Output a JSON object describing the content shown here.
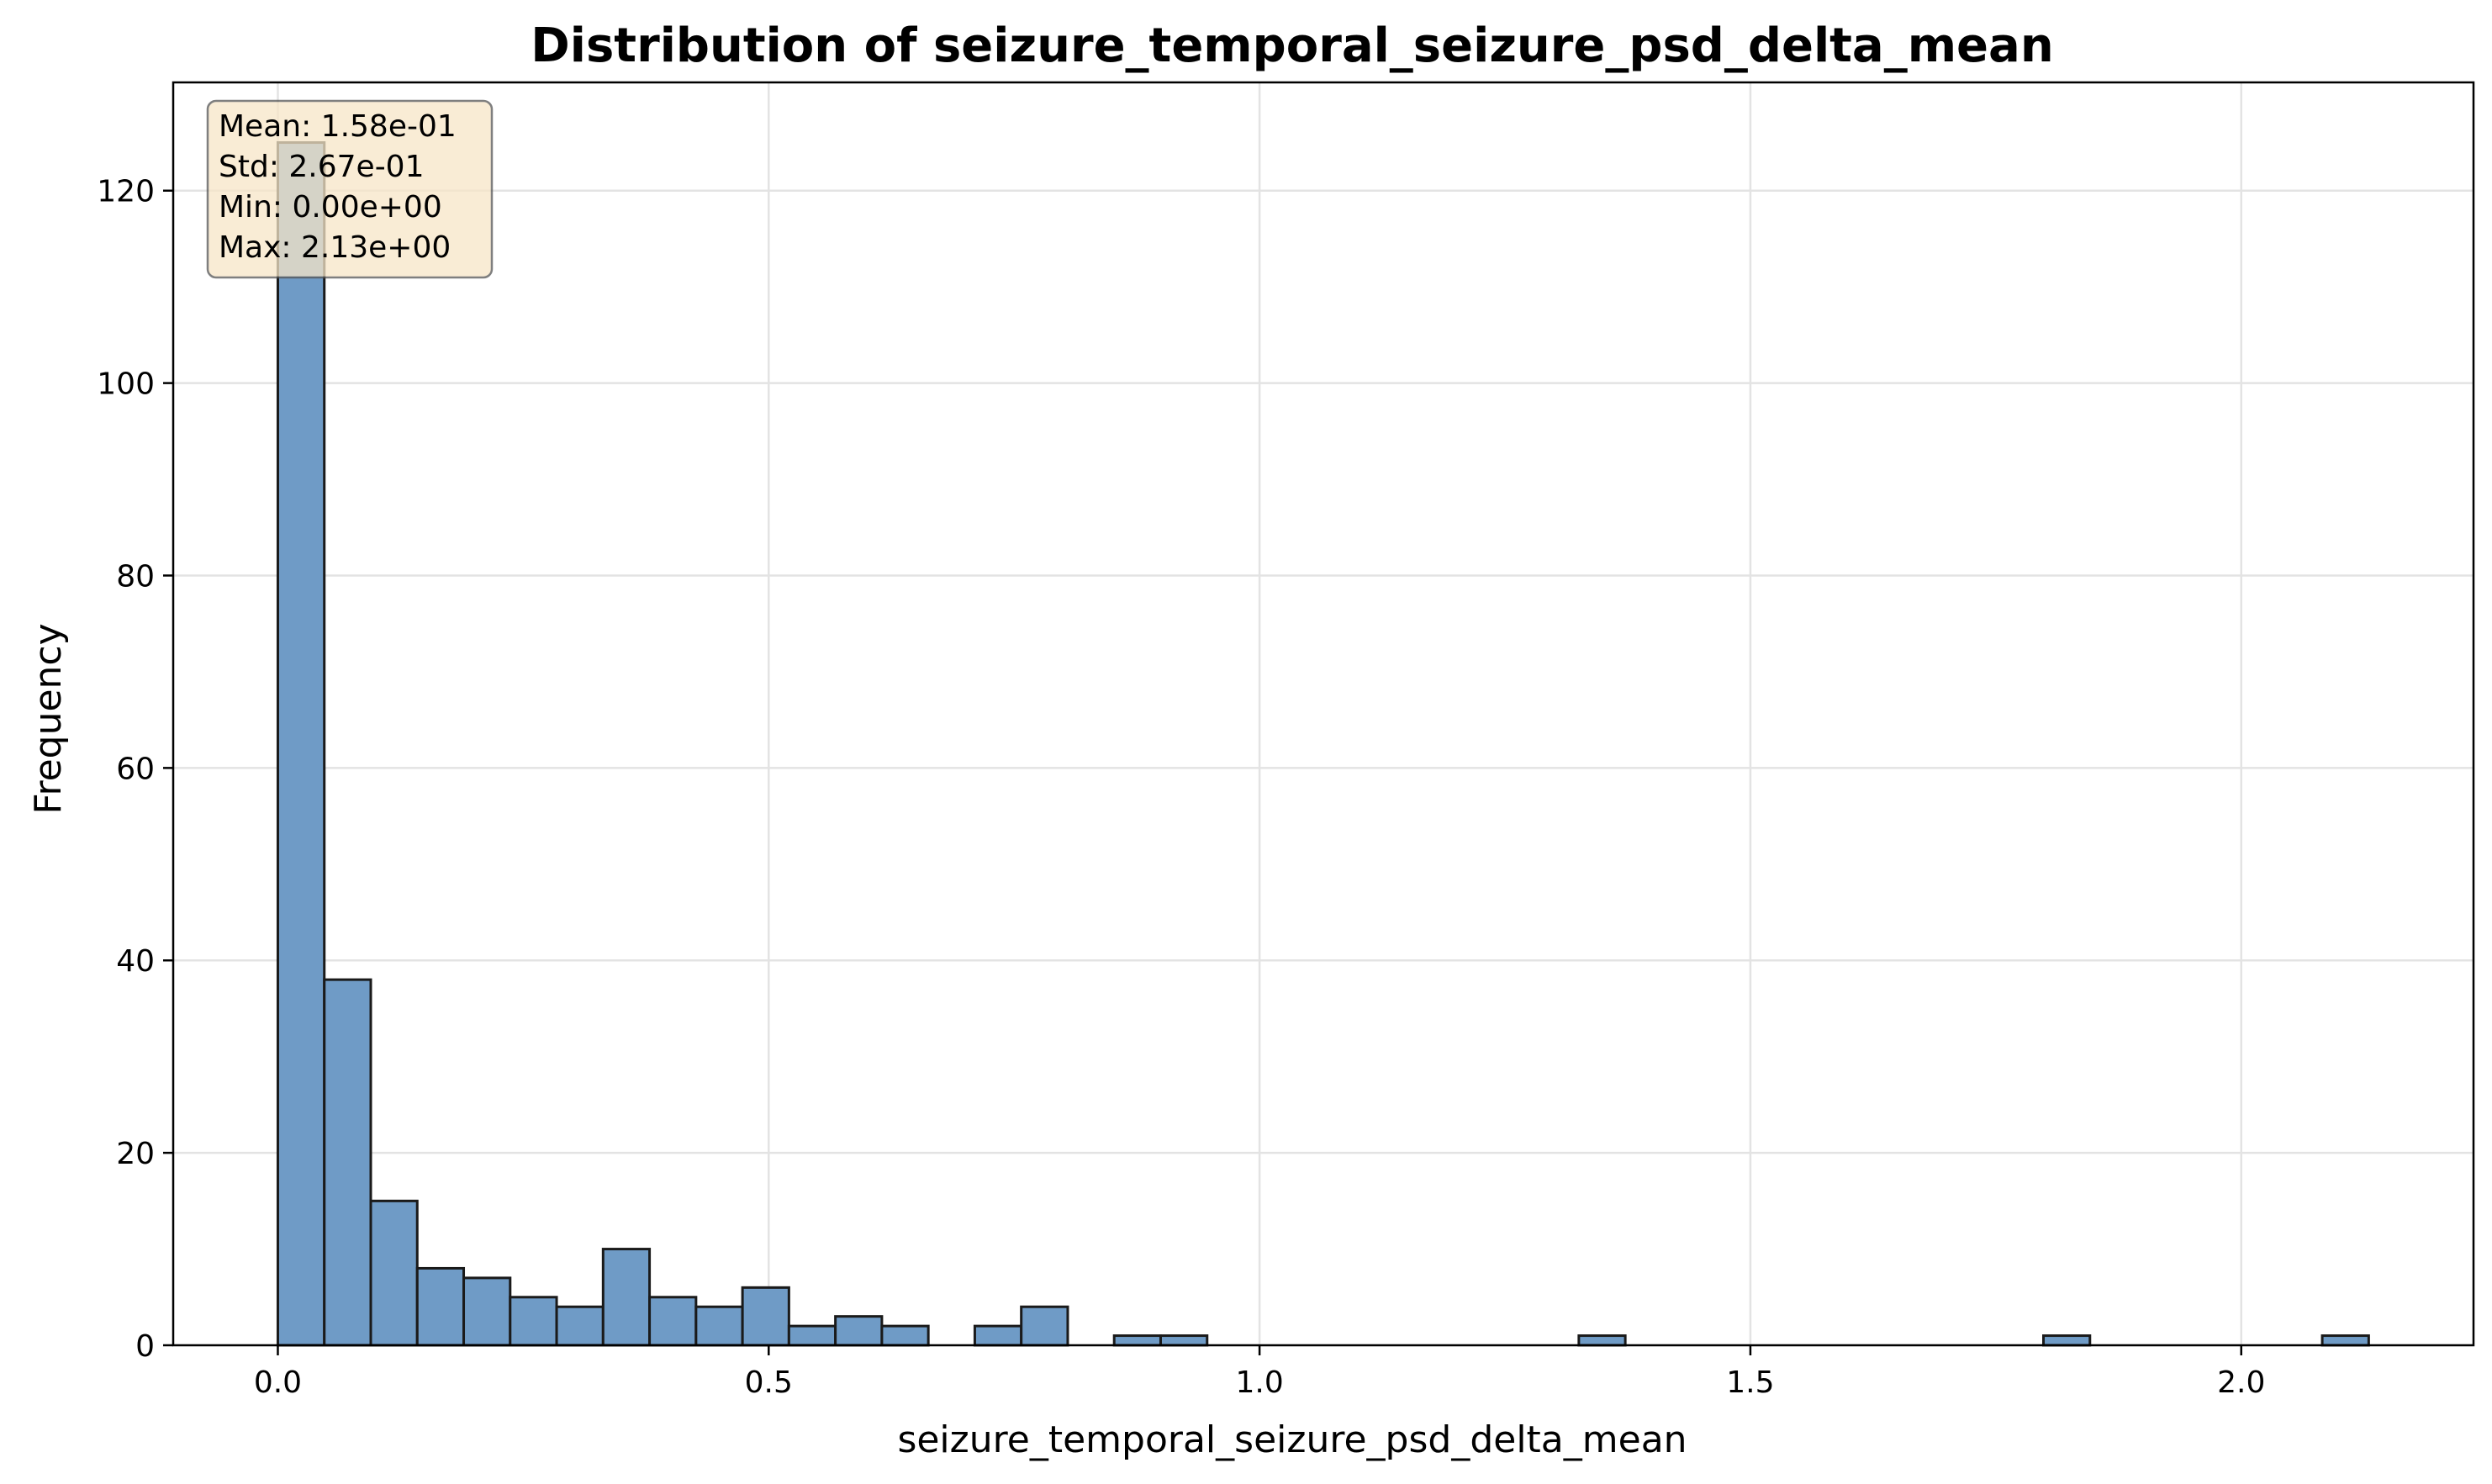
{
  "chart_data": {
    "type": "bar",
    "title": "Distribution of seizure_temporal_seizure_psd_delta_mean",
    "xlabel": "seizure_temporal_seizure_psd_delta_mean",
    "ylabel": "Frequency",
    "xlim": [
      -0.1066,
      2.2366
    ],
    "ylim": [
      0,
      131.25
    ],
    "x_ticks": [
      0.0,
      0.5,
      1.0,
      1.5,
      2.0
    ],
    "x_tick_labels": [
      "0.0",
      "0.5",
      "1.0",
      "1.5",
      "2.0"
    ],
    "y_ticks": [
      0,
      20,
      40,
      60,
      80,
      100,
      120
    ],
    "y_tick_labels": [
      "0",
      "20",
      "40",
      "60",
      "80",
      "100",
      "120"
    ],
    "bin_start": 0.0,
    "bin_width": 0.04733,
    "counts": [
      125,
      38,
      15,
      8,
      7,
      5,
      4,
      10,
      5,
      4,
      6,
      2,
      3,
      2,
      0,
      2,
      4,
      0,
      1,
      1,
      0,
      0,
      0,
      0,
      0,
      0,
      0,
      0,
      1,
      0,
      0,
      0,
      0,
      0,
      0,
      0,
      0,
      0,
      1,
      0,
      0,
      0,
      0,
      0,
      1
    ],
    "grid": true,
    "bar_color": "#6f9bc6",
    "bar_edge_color": "#1a1a1a",
    "stats_box": {
      "lines": [
        "Mean: 1.58e-01",
        "Std: 2.67e-01",
        "Min: 0.00e+00",
        "Max: 2.13e+00"
      ],
      "placement": "top-left",
      "background": "#f7e6c8",
      "border": "#555555"
    }
  }
}
